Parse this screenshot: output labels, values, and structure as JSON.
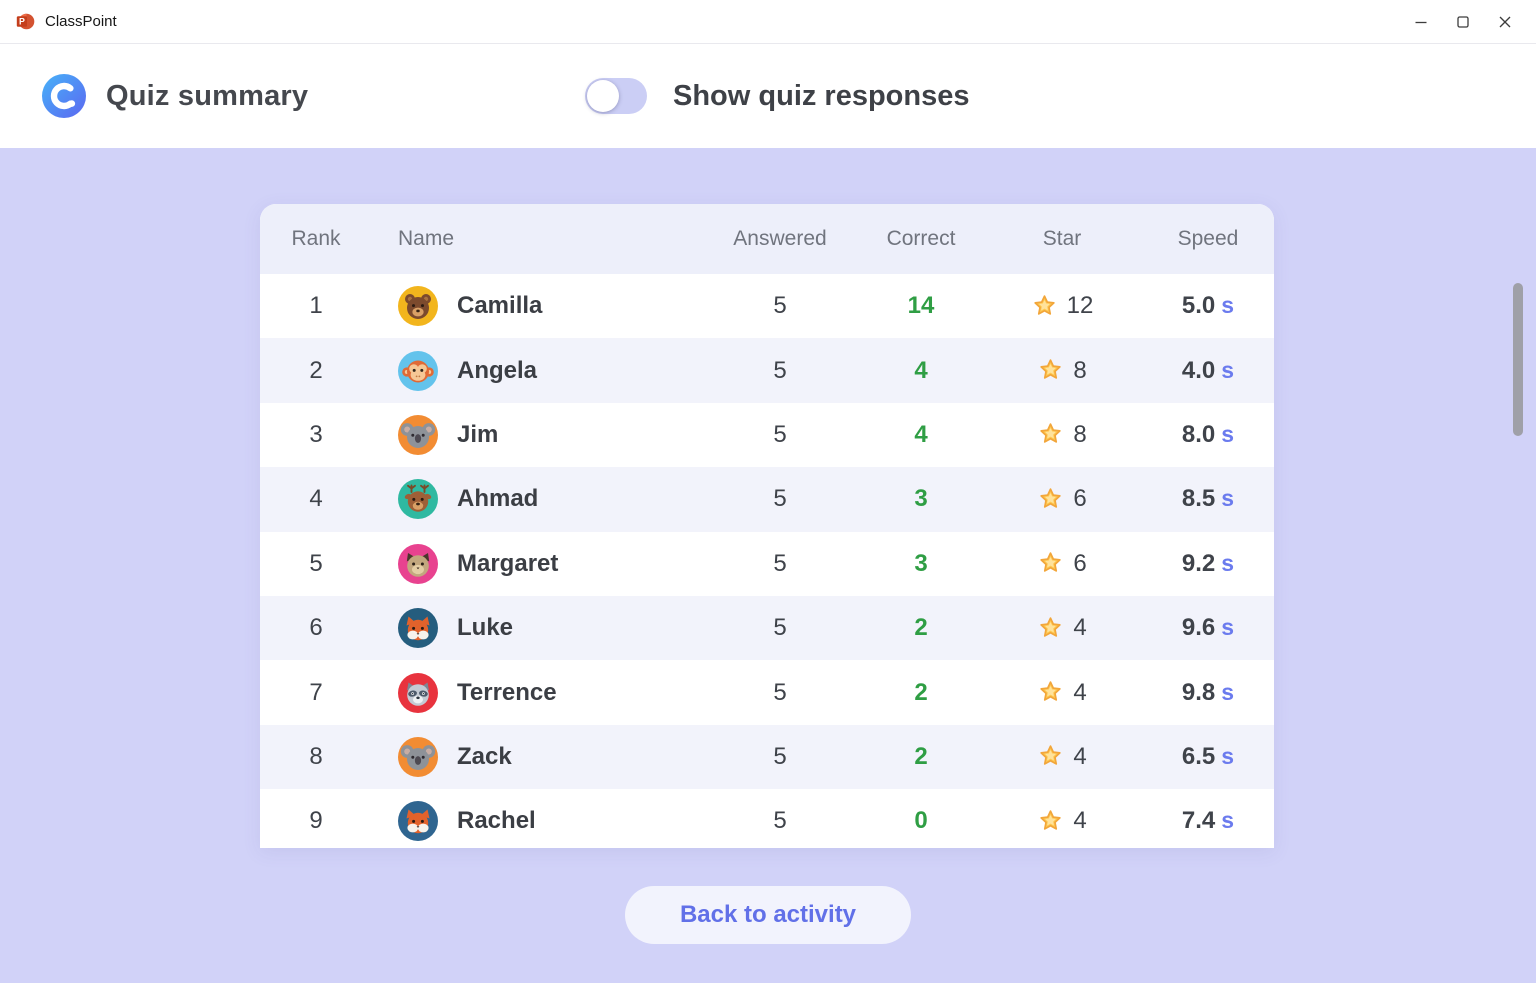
{
  "window": {
    "app_name": "ClassPoint"
  },
  "header": {
    "title": "Quiz summary",
    "toggle_label": "Show quiz responses",
    "toggle_state": "off"
  },
  "table": {
    "columns": [
      "Rank",
      "Name",
      "Answered",
      "Correct",
      "Star",
      "Speed"
    ],
    "speed_unit": "s",
    "rows": [
      {
        "rank": "1",
        "name": "Camilla",
        "animal": "bear",
        "avatar_bg": "#F2B51D",
        "answered": "5",
        "correct": "14",
        "stars": "12",
        "speed": "5.0"
      },
      {
        "rank": "2",
        "name": "Angela",
        "animal": "monkey",
        "avatar_bg": "#63C3EC",
        "answered": "5",
        "correct": "4",
        "stars": "8",
        "speed": "4.0"
      },
      {
        "rank": "3",
        "name": "Jim",
        "animal": "koala",
        "avatar_bg": "#F28C33",
        "answered": "5",
        "correct": "4",
        "stars": "8",
        "speed": "8.0"
      },
      {
        "rank": "4",
        "name": "Ahmad",
        "animal": "deer",
        "avatar_bg": "#2FB9A1",
        "answered": "5",
        "correct": "3",
        "stars": "6",
        "speed": "8.5"
      },
      {
        "rank": "5",
        "name": "Margaret",
        "animal": "cat",
        "avatar_bg": "#E8428F",
        "answered": "5",
        "correct": "3",
        "stars": "6",
        "speed": "9.2"
      },
      {
        "rank": "6",
        "name": "Luke",
        "animal": "fox",
        "avatar_bg": "#255D7E",
        "answered": "5",
        "correct": "2",
        "stars": "4",
        "speed": "9.6"
      },
      {
        "rank": "7",
        "name": "Terrence",
        "animal": "raccoon",
        "avatar_bg": "#E8333E",
        "answered": "5",
        "correct": "2",
        "stars": "4",
        "speed": "9.8"
      },
      {
        "rank": "8",
        "name": "Zack",
        "animal": "koala",
        "avatar_bg": "#F28C33",
        "answered": "5",
        "correct": "2",
        "stars": "4",
        "speed": "6.5"
      },
      {
        "rank": "9",
        "name": "Rachel",
        "animal": "fox",
        "avatar_bg": "#2F6590",
        "answered": "5",
        "correct": "0",
        "stars": "4",
        "speed": "7.4"
      }
    ]
  },
  "footer": {
    "back_button": "Back to activity"
  },
  "colors": {
    "accent_purple": "#6170E8",
    "correct_green": "#2F9E44",
    "background_lavender": "#D1D2F8",
    "toggle_track": "#CBCEF5",
    "star_gold": "#FFC94F",
    "speed_unit_blue": "#6B7BEE"
  }
}
